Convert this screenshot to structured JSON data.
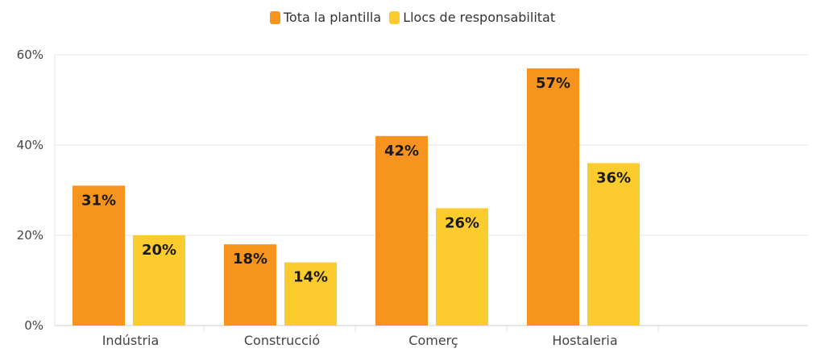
{
  "chart_data": {
    "type": "bar",
    "categories": [
      "Indústria",
      "Construcció",
      "Comerç",
      "Hostaleria"
    ],
    "series": [
      {
        "name": "Tota la plantilla",
        "values": [
          31,
          18,
          42,
          57
        ],
        "labels": [
          "31%",
          "18%",
          "42%",
          "57%"
        ],
        "color": "#F7941D"
      },
      {
        "name": "Llocs de responsabilitat",
        "values": [
          20,
          14,
          26,
          36
        ],
        "labels": [
          "20%",
          "14%",
          "26%",
          "36%"
        ],
        "color": "#FCCB2E"
      }
    ],
    "ylim": [
      0,
      60
    ],
    "yticks": [
      0,
      20,
      40,
      60
    ],
    "ytick_labels": [
      "0%",
      "20%",
      "40%",
      "60%"
    ],
    "grid": true,
    "legend": "top-center",
    "title": "",
    "xlabel": "",
    "ylabel": ""
  }
}
